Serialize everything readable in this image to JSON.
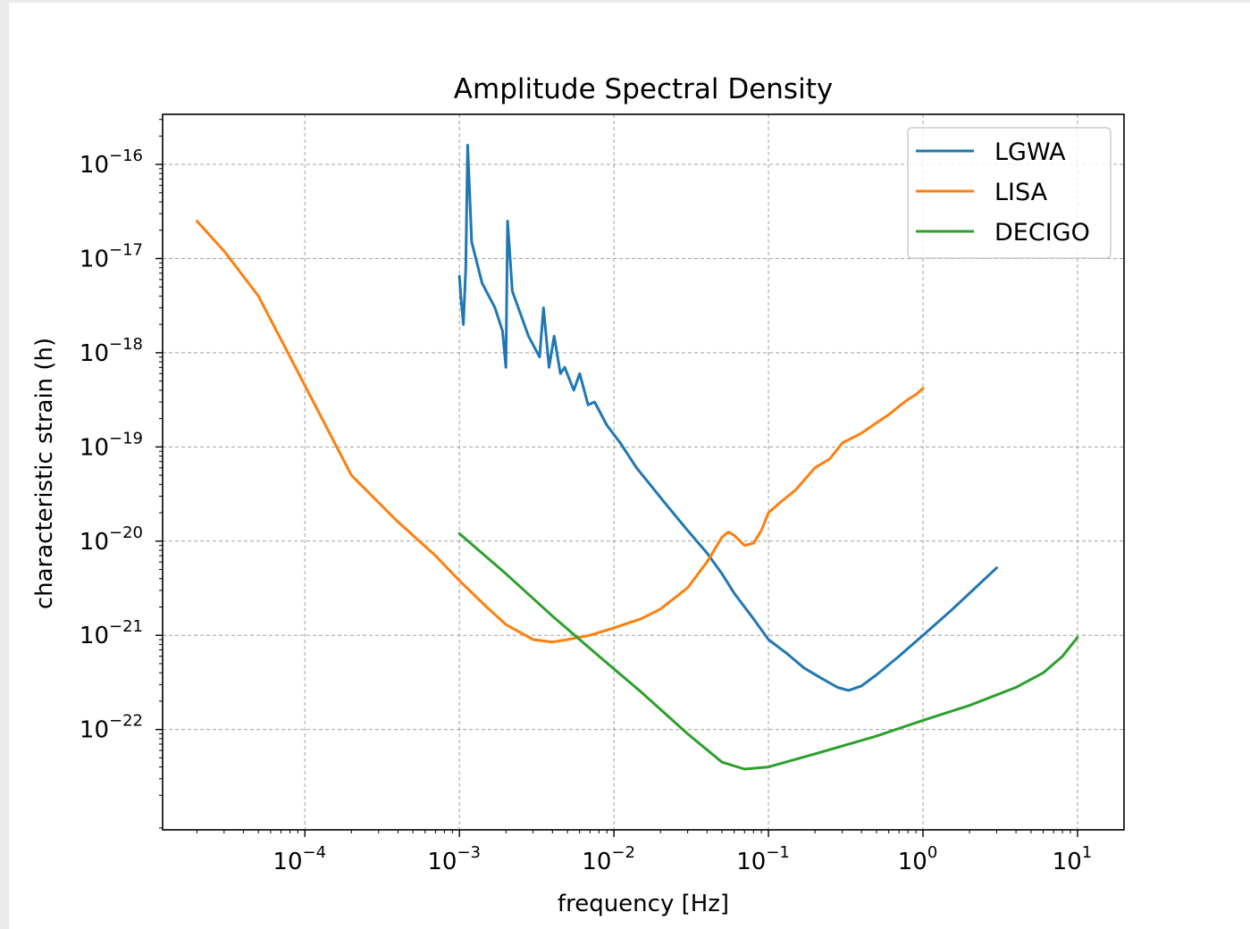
{
  "chart_data": {
    "type": "line",
    "title": "Amplitude Spectral Density",
    "xlabel": "frequency [Hz]",
    "ylabel": "characteristic strain (h)",
    "xscale": "log",
    "yscale": "log",
    "xlim": [
      6.3e-06,
      1e-11
    ],
    "ylim": [
      8.6e-24,
      3.4e-16
    ],
    "grid": true,
    "legend_position": "top-right",
    "xticks": [
      {
        "value": 0.0001,
        "base": "10",
        "exp": "−4"
      },
      {
        "value": 0.001,
        "base": "10",
        "exp": "−3"
      },
      {
        "value": 0.01,
        "base": "10",
        "exp": "−2"
      },
      {
        "value": 0.1,
        "base": "10",
        "exp": "−1"
      },
      {
        "value": 1,
        "base": "10",
        "exp": "0"
      },
      {
        "value": 10,
        "base": "10",
        "exp": "1"
      }
    ],
    "yticks": [
      {
        "value": 1e-16,
        "base": "10",
        "exp": "−16"
      },
      {
        "value": 1e-17,
        "base": "10",
        "exp": "−17"
      },
      {
        "value": 1e-18,
        "base": "10",
        "exp": "−18"
      },
      {
        "value": 1e-19,
        "base": "10",
        "exp": "−19"
      },
      {
        "value": 1e-20,
        "base": "10",
        "exp": "−20"
      },
      {
        "value": 1e-21,
        "base": "10",
        "exp": "−21"
      },
      {
        "value": 1e-22,
        "base": "10",
        "exp": "−22"
      }
    ],
    "series": [
      {
        "name": "LGWA",
        "color": "#1f77b4",
        "x": [
          0.001,
          0.00102,
          0.00106,
          0.0011,
          0.00113,
          0.0012,
          0.0014,
          0.0017,
          0.0019,
          0.002,
          0.00205,
          0.0022,
          0.0028,
          0.0033,
          0.0035,
          0.0038,
          0.0041,
          0.0045,
          0.0048,
          0.0055,
          0.006,
          0.0068,
          0.0075,
          0.009,
          0.011,
          0.014,
          0.018,
          0.022,
          0.03,
          0.04,
          0.05,
          0.06,
          0.08,
          0.1,
          0.13,
          0.17,
          0.22,
          0.28,
          0.33,
          0.4,
          0.5,
          0.7,
          1.0,
          1.5,
          2.0,
          3.0
        ],
        "y": [
          6.5e-18,
          4e-18,
          2e-18,
          8e-18,
          1.6e-16,
          1.5e-17,
          5.5e-18,
          3e-18,
          1.7e-18,
          7e-19,
          2.5e-17,
          4.5e-18,
          1.5e-18,
          9e-19,
          3e-18,
          7e-19,
          1.5e-18,
          6e-19,
          7e-19,
          4e-19,
          6e-19,
          2.8e-19,
          3e-19,
          1.7e-19,
          1.1e-19,
          6e-20,
          3.6e-20,
          2.4e-20,
          1.3e-20,
          7.5e-21,
          4.5e-21,
          2.8e-21,
          1.5e-21,
          9e-22,
          6.5e-22,
          4.5e-22,
          3.5e-22,
          2.8e-22,
          2.6e-22,
          2.9e-22,
          3.8e-22,
          6e-22,
          1e-21,
          1.8e-21,
          2.8e-21,
          5.2e-21
        ]
      },
      {
        "name": "LISA",
        "color": "#ff7f0e",
        "x": [
          2e-05,
          3e-05,
          5e-05,
          0.0001,
          0.0002,
          0.0004,
          0.0007,
          0.001,
          0.0015,
          0.002,
          0.003,
          0.004,
          0.005,
          0.007,
          0.01,
          0.015,
          0.02,
          0.03,
          0.04,
          0.05,
          0.055,
          0.06,
          0.07,
          0.08,
          0.09,
          0.1,
          0.12,
          0.15,
          0.2,
          0.25,
          0.3,
          0.4,
          0.5,
          0.6,
          0.7,
          0.8,
          0.9,
          1.0
        ],
        "y": [
          2.5e-17,
          1.2e-17,
          4e-18,
          4.5e-19,
          5e-20,
          1.6e-20,
          7e-21,
          3.8e-21,
          2e-21,
          1.3e-21,
          9e-22,
          8.5e-22,
          9e-22,
          1e-21,
          1.2e-21,
          1.5e-21,
          1.9e-21,
          3.2e-21,
          6e-21,
          1.1e-20,
          1.25e-20,
          1.15e-20,
          9e-21,
          9.5e-21,
          1.3e-20,
          2e-20,
          2.6e-20,
          3.5e-20,
          6e-20,
          7.5e-20,
          1.1e-19,
          1.4e-19,
          1.8e-19,
          2.2e-19,
          2.7e-19,
          3.2e-19,
          3.6e-19,
          4.2e-19
        ]
      },
      {
        "name": "DECIGO",
        "color": "#2ca02c",
        "x": [
          0.001,
          0.002,
          0.004,
          0.008,
          0.015,
          0.03,
          0.05,
          0.07,
          0.1,
          0.2,
          0.5,
          1.0,
          2.0,
          4.0,
          6.0,
          8.0,
          10.0
        ],
        "y": [
          1.2e-20,
          4.5e-21,
          1.6e-21,
          6e-22,
          2.5e-22,
          9e-23,
          4.5e-23,
          3.8e-23,
          4e-23,
          5.5e-23,
          8.5e-23,
          1.25e-22,
          1.8e-22,
          2.8e-22,
          4e-22,
          6e-22,
          9.5e-22
        ]
      }
    ]
  }
}
